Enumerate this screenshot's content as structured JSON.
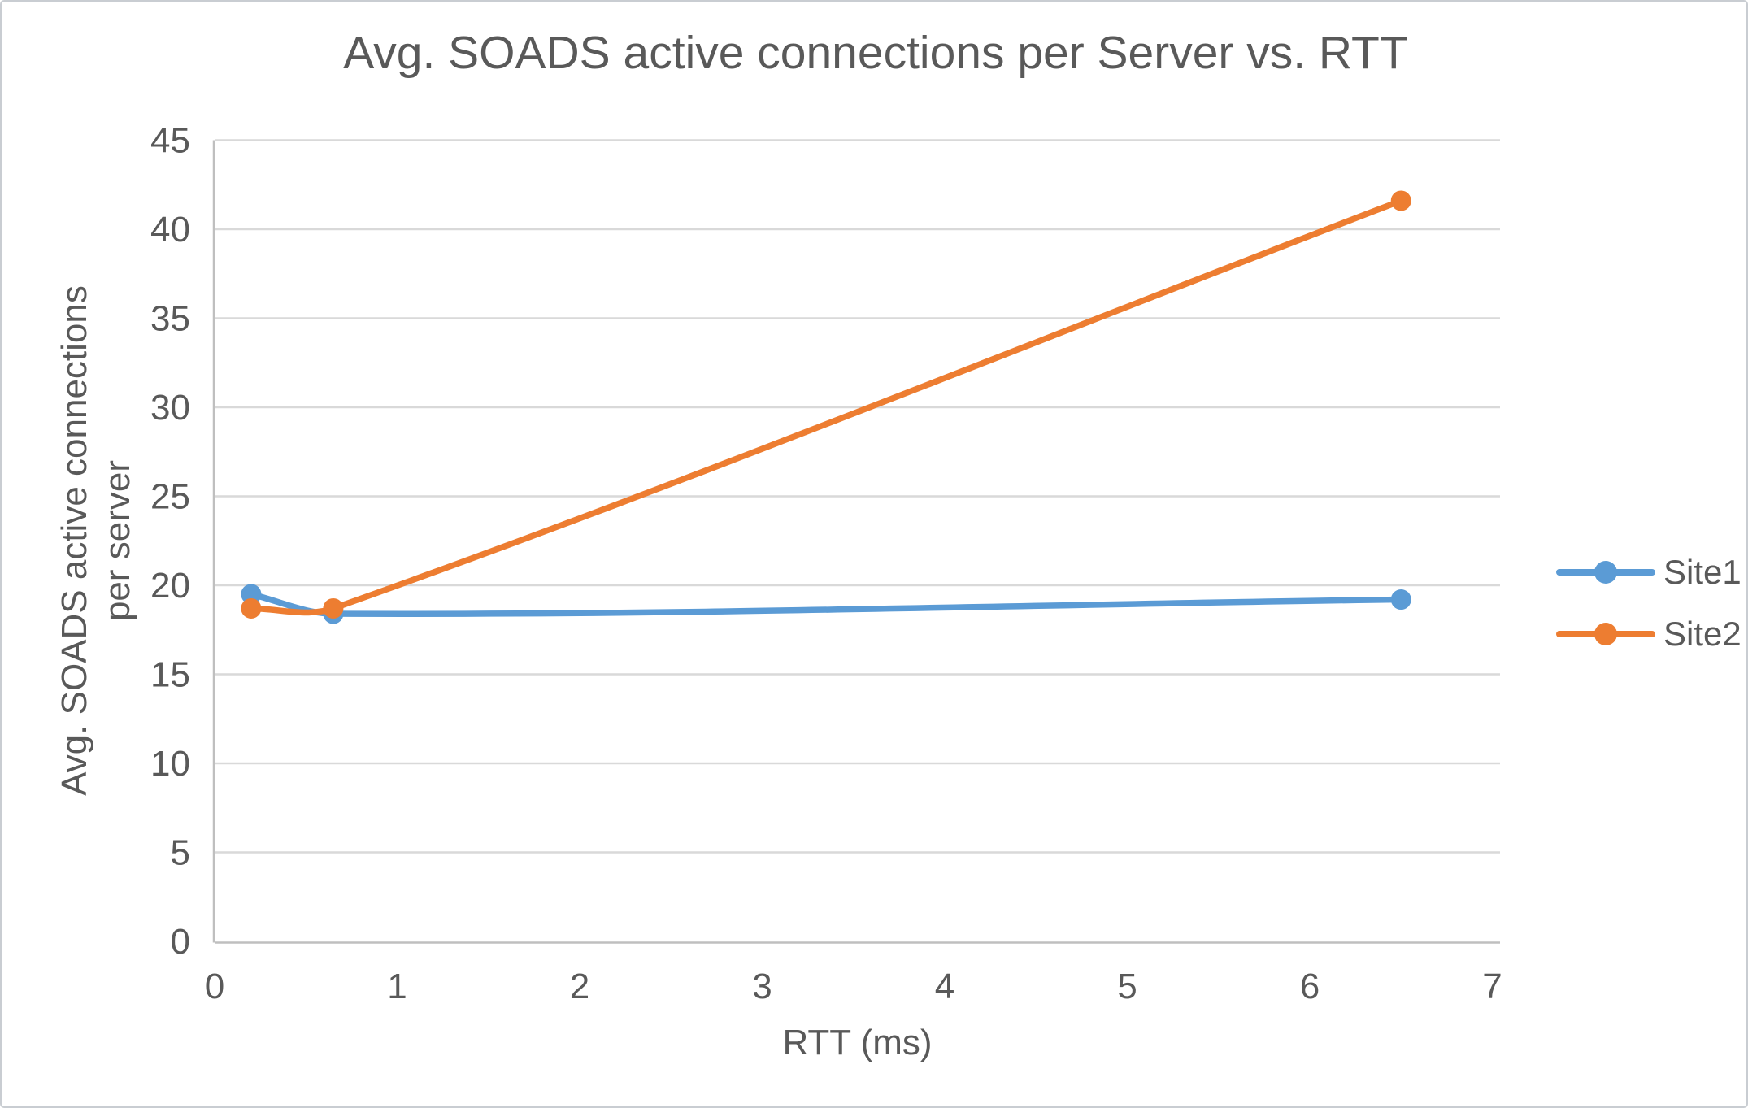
{
  "chart_data": {
    "type": "line",
    "title": "Avg. SOADS active connections per Server vs. RTT",
    "xlabel": "RTT (ms)",
    "ylabel_line1": "Avg. SOADS active connections",
    "ylabel_line2": "per server",
    "xlim": [
      0,
      7
    ],
    "ylim": [
      0,
      45
    ],
    "x_ticks": [
      0,
      1,
      2,
      3,
      4,
      5,
      6,
      7
    ],
    "y_ticks": [
      0,
      5,
      10,
      15,
      20,
      25,
      30,
      35,
      40,
      45
    ],
    "grid": "horizontal gridlines on",
    "legend_position": "right",
    "line_style": "smooth",
    "series": [
      {
        "name": "Site1",
        "color": "#5B9BD5",
        "x": [
          0.2,
          0.65,
          6.5
        ],
        "y": [
          19.5,
          18.4,
          19.2
        ]
      },
      {
        "name": "Site2",
        "color": "#ED7D31",
        "x": [
          0.2,
          0.65,
          6.5
        ],
        "y": [
          18.7,
          18.7,
          41.6
        ]
      }
    ],
    "text_color": "#595959",
    "gridline_color": "#D9D9D9",
    "axis_color": "#BFBFBF"
  }
}
